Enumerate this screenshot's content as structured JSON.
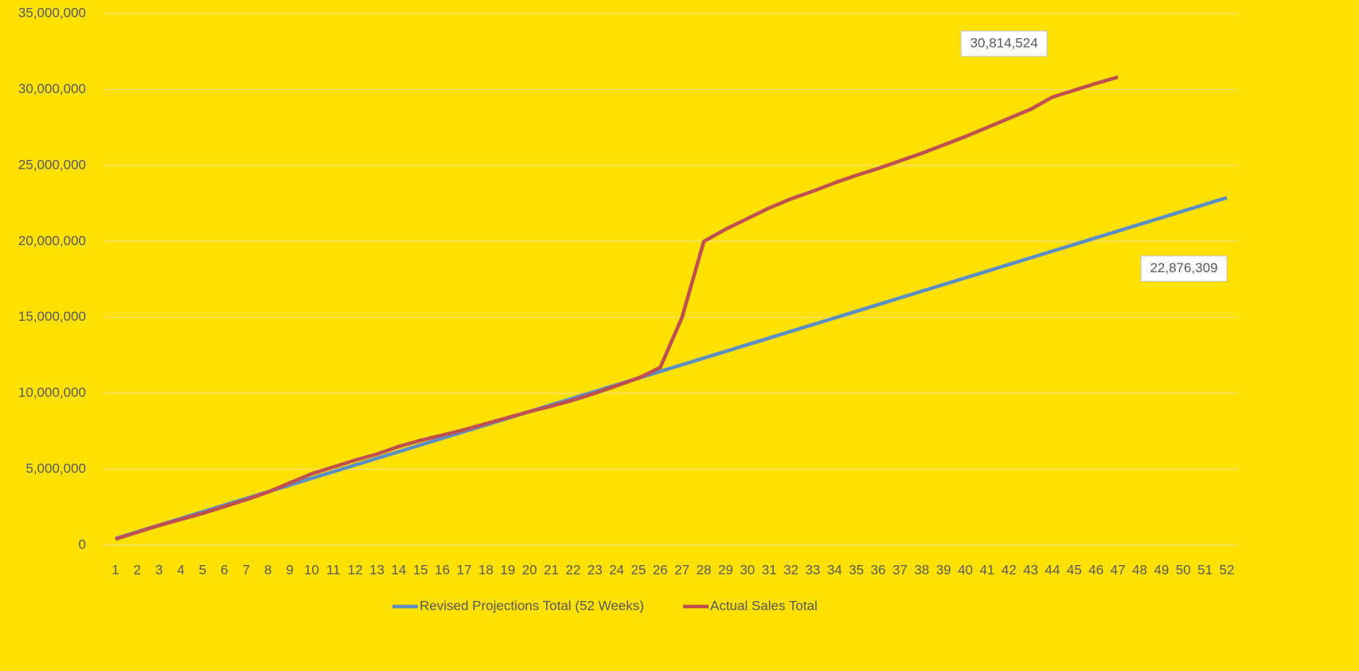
{
  "chart_data": {
    "type": "line",
    "categories": [
      "1",
      "2",
      "3",
      "4",
      "5",
      "6",
      "7",
      "8",
      "9",
      "10",
      "11",
      "12",
      "13",
      "14",
      "15",
      "16",
      "17",
      "18",
      "19",
      "20",
      "21",
      "22",
      "23",
      "24",
      "25",
      "26",
      "27",
      "28",
      "29",
      "30",
      "31",
      "32",
      "33",
      "34",
      "35",
      "36",
      "37",
      "38",
      "39",
      "40",
      "41",
      "42",
      "43",
      "44",
      "45",
      "46",
      "47",
      "48",
      "49",
      "50",
      "51",
      "52"
    ],
    "ylim": [
      0,
      35000000
    ],
    "yticks": [
      0,
      {
        "value": 5000000,
        "label": "5,000,000"
      },
      {
        "value": 10000000,
        "label": "10,000,000"
      },
      {
        "value": 15000000,
        "label": "15,000,000"
      },
      {
        "value": 20000000,
        "label": "20,000,000"
      },
      {
        "value": 25000000,
        "label": "25,000,000"
      },
      {
        "value": 30000000,
        "label": "30,000,000"
      },
      {
        "value": 35000000,
        "label": "35,000,000"
      }
    ],
    "grid": true,
    "legend": "bottom",
    "series": [
      {
        "name": "Revised Projections Total (52 Weeks)",
        "color": "#5b8fc4",
        "values": [
          440000,
          880000,
          1320000,
          1760000,
          2200000,
          2640000,
          3080000,
          3520000,
          3960000,
          4400000,
          4840000,
          5280000,
          5720000,
          6160000,
          6600000,
          7040000,
          7480000,
          7920000,
          8360000,
          8800000,
          9240000,
          9680000,
          10120000,
          10560000,
          11000000,
          11440000,
          11880000,
          12320000,
          12760000,
          13200000,
          13640000,
          14080000,
          14520000,
          14960000,
          15400000,
          15840000,
          16280000,
          16720000,
          17160000,
          17600000,
          18040000,
          18480000,
          18920000,
          19360000,
          19800000,
          20240000,
          20680000,
          21120000,
          21560000,
          22000000,
          22440000,
          22876309
        ],
        "value_labels": [
          null,
          null,
          null,
          null,
          null,
          null,
          null,
          null,
          null,
          null,
          null,
          null,
          null,
          null,
          null,
          null,
          null,
          null,
          null,
          null,
          null,
          null,
          null,
          null,
          null,
          null,
          null,
          null,
          null,
          null,
          null,
          null,
          null,
          null,
          null,
          null,
          null,
          null,
          null,
          null,
          null,
          null,
          null,
          null,
          null,
          null,
          null,
          null,
          null,
          null,
          null,
          "22,876,309"
        ]
      },
      {
        "name": "Actual Sales Total",
        "color": "#c0504d",
        "values": [
          400000,
          850000,
          1300000,
          1700000,
          2100000,
          2550000,
          3000000,
          3500000,
          4100000,
          4700000,
          5150000,
          5600000,
          6000000,
          6500000,
          6900000,
          7250000,
          7600000,
          8000000,
          8400000,
          8800000,
          9150000,
          9550000,
          10000000,
          10500000,
          11000000,
          11700000,
          15000000,
          20000000,
          20800000,
          21500000,
          22200000,
          22800000,
          23300000,
          23850000,
          24350000,
          24800000,
          25300000,
          25800000,
          26350000,
          26900000,
          27500000,
          28100000,
          28700000,
          29500000,
          29950000,
          30400000,
          30814524,
          null,
          null,
          null,
          null,
          null
        ],
        "value_labels": [
          null,
          null,
          null,
          null,
          null,
          null,
          null,
          null,
          null,
          null,
          null,
          null,
          null,
          null,
          null,
          null,
          null,
          null,
          null,
          null,
          null,
          null,
          null,
          null,
          null,
          null,
          null,
          null,
          null,
          null,
          null,
          null,
          null,
          null,
          null,
          null,
          null,
          null,
          null,
          null,
          null,
          null,
          null,
          null,
          null,
          null,
          "30,814,524",
          null,
          null,
          null,
          null,
          null
        ]
      }
    ]
  }
}
